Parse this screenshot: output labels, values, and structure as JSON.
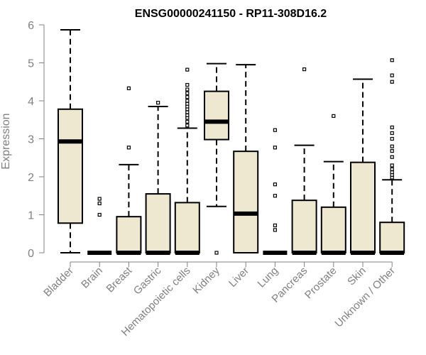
{
  "chart_data": {
    "type": "boxplot",
    "title": "ENSG00000241150 - RP11-308D16.2",
    "xlabel": "",
    "ylabel": "Expression",
    "ylim": [
      0,
      6
    ],
    "yticks": [
      0,
      1,
      2,
      3,
      4,
      5,
      6
    ],
    "grid": false,
    "legend": "none",
    "colors": {
      "box_fill": "#efe8d1",
      "box_stroke": "#000000",
      "axis": "#808080"
    },
    "categories": [
      "Bladder",
      "Brain",
      "Breast",
      "Gastric",
      "Hematopoietic cells",
      "Kidney",
      "Liver",
      "Lung",
      "Pancreas",
      "Prostate",
      "Skin",
      "Unknown / Other"
    ],
    "boxes": [
      {
        "category": "Bladder",
        "min": 0,
        "q1": 0.78,
        "median": 2.93,
        "q3": 3.78,
        "max": 5.87,
        "outliers": []
      },
      {
        "category": "Brain",
        "min": 0,
        "q1": 0,
        "median": 0,
        "q3": 0,
        "max": 0,
        "outliers": [
          1.0,
          1.3,
          1.42
        ]
      },
      {
        "category": "Breast",
        "min": 0,
        "q1": 0,
        "median": 0,
        "q3": 0.95,
        "max": 2.32,
        "outliers": [
          2.77,
          4.33
        ]
      },
      {
        "category": "Gastric",
        "min": 0,
        "q1": 0,
        "median": 0,
        "q3": 1.55,
        "max": 3.85,
        "outliers": [
          3.95
        ]
      },
      {
        "category": "Hematopoietic cells",
        "min": 0,
        "q1": 0,
        "median": 0,
        "q3": 1.32,
        "max": 3.28,
        "outliers": [
          3.35,
          3.45,
          3.55,
          3.62,
          3.7,
          3.78,
          3.85,
          3.92,
          4.0,
          4.1,
          4.2,
          4.3,
          4.42,
          4.82
        ]
      },
      {
        "category": "Kidney",
        "min": 1.22,
        "q1": 2.98,
        "median": 3.45,
        "q3": 4.25,
        "max": 4.98,
        "outliers": [
          0
        ]
      },
      {
        "category": "Liver",
        "min": 0,
        "q1": 0,
        "median": 1.03,
        "q3": 2.67,
        "max": 4.95,
        "outliers": []
      },
      {
        "category": "Lung",
        "min": 0,
        "q1": 0,
        "median": 0,
        "q3": 0,
        "max": 0,
        "outliers": [
          0.6,
          0.72,
          1.5,
          1.8,
          2.77,
          3.23
        ]
      },
      {
        "category": "Pancreas",
        "min": 0,
        "q1": 0,
        "median": 0,
        "q3": 1.38,
        "max": 2.83,
        "outliers": [
          4.83
        ]
      },
      {
        "category": "Prostate",
        "min": 0,
        "q1": 0,
        "median": 0,
        "q3": 1.2,
        "max": 2.4,
        "outliers": [
          3.6
        ]
      },
      {
        "category": "Skin",
        "min": 0,
        "q1": 0,
        "median": 0,
        "q3": 2.38,
        "max": 4.57,
        "outliers": []
      },
      {
        "category": "Unknown / Other",
        "min": 0,
        "q1": 0,
        "median": 0,
        "q3": 0.8,
        "max": 1.92,
        "outliers": [
          1.98,
          2.05,
          2.12,
          2.2,
          2.3,
          2.52,
          2.68,
          2.8,
          3.0,
          3.15,
          3.3,
          4.5,
          4.67,
          5.07
        ]
      }
    ]
  }
}
